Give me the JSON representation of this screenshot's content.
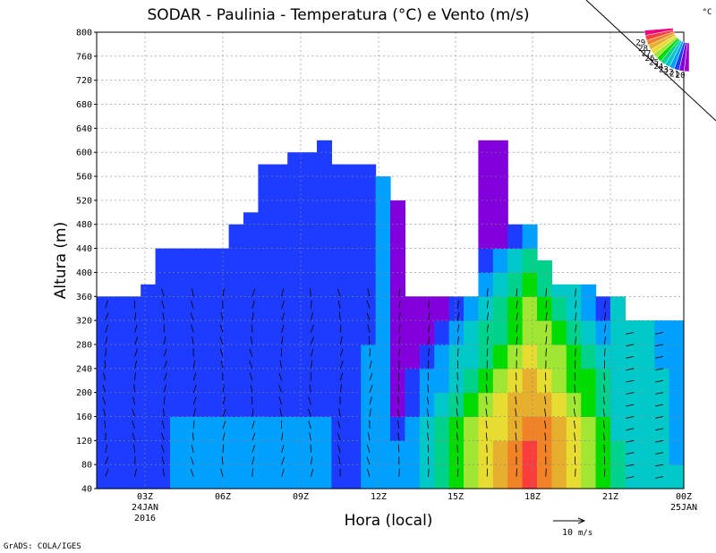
{
  "chart_data": {
    "type": "heatmap",
    "title": "SODAR - Paulinia - Temperatura (°C) e Vento (m/s)",
    "xlabel": "Hora (local)",
    "ylabel": "Altura (m)",
    "ylim": [
      40,
      800
    ],
    "y_ticks": [
      "40",
      "80",
      "120",
      "160",
      "200",
      "240",
      "280",
      "320",
      "360",
      "400",
      "440",
      "480",
      "520",
      "560",
      "600",
      "640",
      "680",
      "720",
      "760",
      "800"
    ],
    "x_ticks": [
      {
        "label": "03Z",
        "sub1": "24JAN",
        "sub2": "2016"
      },
      {
        "label": "06Z",
        "sub1": "",
        "sub2": ""
      },
      {
        "label": "09Z",
        "sub1": "",
        "sub2": ""
      },
      {
        "label": "12Z",
        "sub1": "",
        "sub2": ""
      },
      {
        "label": "15Z",
        "sub1": "",
        "sub2": ""
      },
      {
        "label": "18Z",
        "sub1": "",
        "sub2": ""
      },
      {
        "label": "21Z",
        "sub1": "",
        "sub2": ""
      },
      {
        "label": "00Z",
        "sub1": "25JAN",
        "sub2": ""
      }
    ],
    "colorbar": {
      "unit": "°C",
      "levels": [
        "20",
        "21",
        "22",
        "23",
        "24",
        "25",
        "26",
        "27",
        "28",
        "29"
      ],
      "colors": [
        "#a000c8",
        "#8200dc",
        "#1e3cff",
        "#00a0ff",
        "#00c8c8",
        "#00d28c",
        "#00dc00",
        "#a0e632",
        "#e6dc32",
        "#e6af2d",
        "#f08228",
        "#fa3c3c",
        "#f00082"
      ]
    },
    "top_heights_m": [
      360,
      360,
      360,
      380,
      440,
      440,
      440,
      440,
      440,
      480,
      500,
      580,
      580,
      600,
      600,
      620,
      580,
      580,
      580,
      560,
      520,
      360,
      360,
      360,
      360,
      360,
      620,
      620,
      480,
      480,
      420,
      380,
      380,
      380,
      360,
      360,
      320,
      320,
      320,
      320
    ],
    "x_hours": [
      0,
      0.5,
      1,
      1.5,
      2,
      2.5,
      3,
      3.5,
      4,
      4.5,
      5,
      5.5,
      6,
      6.5,
      7,
      7.5,
      8,
      8.5,
      9,
      9.5,
      10,
      10.5,
      11,
      11.5,
      12,
      12.5,
      13,
      13.5,
      14,
      14.5,
      15,
      15.5,
      16,
      16.5,
      17,
      17.5,
      18,
      18.5,
      19,
      19.5
    ]
  },
  "vector_legend": {
    "value": "10",
    "unit": "m/s"
  },
  "footer": "GrADS: COLA/IGES"
}
